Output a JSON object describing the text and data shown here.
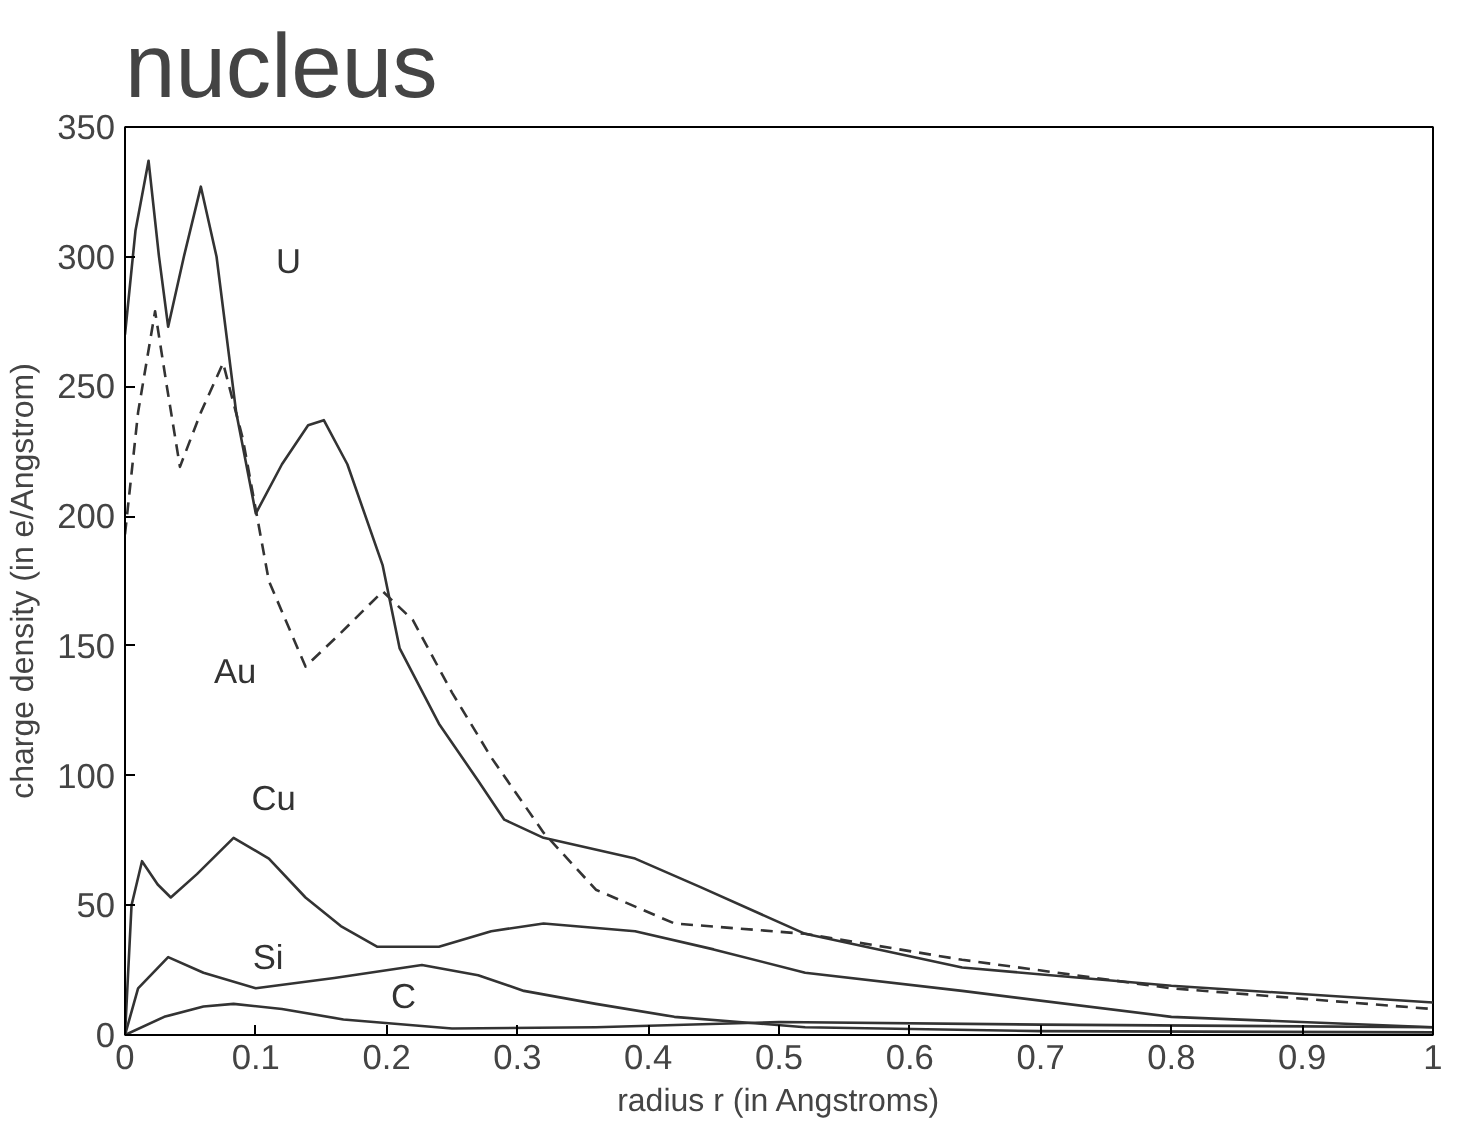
{
  "chart_data": {
    "type": "line",
    "title": "nucleus",
    "xlabel": "radius r (in Angstroms)",
    "ylabel": "charge density (in e/Angstrom)",
    "xlim": [
      0,
      1
    ],
    "ylim": [
      0,
      350
    ],
    "xticks": [
      0,
      0.1,
      0.2,
      0.3,
      0.4,
      0.5,
      0.6,
      0.7,
      0.8,
      0.9,
      1
    ],
    "yticks": [
      0,
      50,
      100,
      150,
      200,
      250,
      300,
      350
    ],
    "grid": false,
    "marker": "none",
    "series": [
      {
        "name": "U",
        "color": "#333333",
        "line_style": "solid",
        "x": [
          0,
          0.008,
          0.018,
          0.026,
          0.033,
          0.045,
          0.058,
          0.07,
          0.085,
          0.1,
          0.12,
          0.14,
          0.152,
          0.17,
          0.197,
          0.21,
          0.24,
          0.27,
          0.29,
          0.32,
          0.39,
          0.44,
          0.52,
          0.64,
          0.8,
          1.0
        ],
        "values": [
          270,
          310,
          337,
          300,
          273,
          300,
          327,
          300,
          240,
          201,
          220,
          235,
          237,
          220,
          181,
          149,
          120,
          98,
          83,
          76,
          68,
          57,
          39,
          26,
          19,
          12.5
        ]
      },
      {
        "name": "Au",
        "color": "#333333",
        "line_style": "dashed",
        "x": [
          0,
          0.01,
          0.023,
          0.032,
          0.042,
          0.058,
          0.075,
          0.09,
          0.11,
          0.138,
          0.165,
          0.197,
          0.22,
          0.25,
          0.28,
          0.32,
          0.36,
          0.42,
          0.52,
          0.64,
          0.8,
          1.0
        ],
        "values": [
          193,
          240,
          279,
          250,
          219,
          240,
          259,
          230,
          175,
          142,
          155,
          171,
          160,
          132,
          107,
          78,
          56,
          43,
          39,
          29,
          18,
          10
        ]
      },
      {
        "name": "Cu",
        "color": "#333333",
        "line_style": "solid",
        "x": [
          0,
          0.005,
          0.013,
          0.025,
          0.035,
          0.055,
          0.083,
          0.11,
          0.138,
          0.165,
          0.193,
          0.24,
          0.28,
          0.32,
          0.39,
          0.45,
          0.52,
          0.64,
          0.8,
          1.0
        ],
        "values": [
          0,
          50,
          67,
          58,
          53,
          62,
          76,
          68,
          53,
          42,
          34,
          34,
          40,
          43,
          40,
          33,
          24,
          17,
          7,
          3
        ]
      },
      {
        "name": "Si",
        "color": "#333333",
        "line_style": "solid",
        "x": [
          0,
          0.01,
          0.033,
          0.06,
          0.1,
          0.16,
          0.227,
          0.27,
          0.305,
          0.36,
          0.42,
          0.52,
          0.7,
          1.0
        ],
        "values": [
          0,
          18,
          30,
          24,
          18,
          22,
          27,
          23,
          17,
          12,
          7,
          3,
          1.5,
          1
        ]
      },
      {
        "name": "C",
        "color": "#333333",
        "line_style": "solid",
        "x": [
          0,
          0.03,
          0.06,
          0.083,
          0.12,
          0.167,
          0.25,
          0.36,
          0.5,
          0.7,
          1.0
        ],
        "values": [
          0,
          7,
          11,
          12,
          10,
          6,
          2.5,
          3,
          5,
          4,
          3
        ]
      }
    ]
  }
}
